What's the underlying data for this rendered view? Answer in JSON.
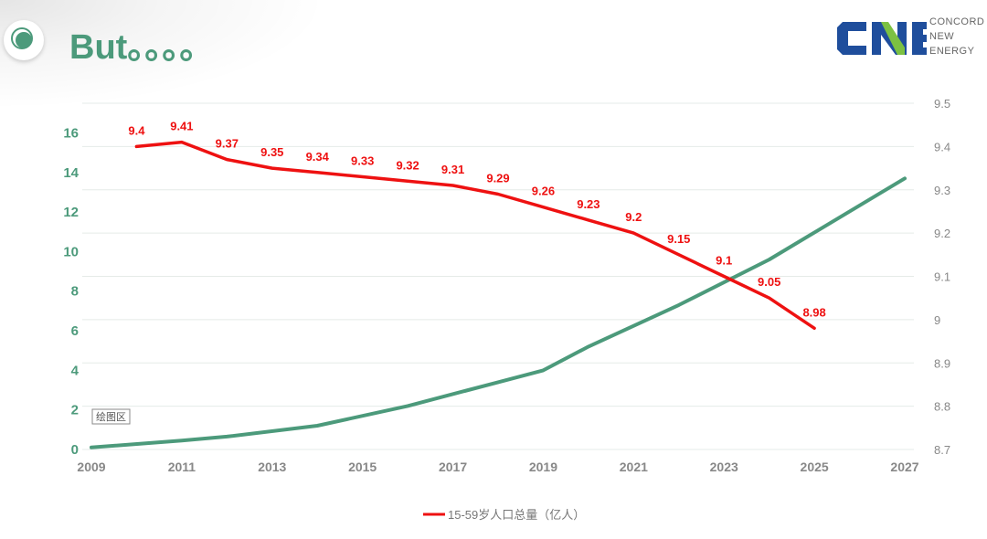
{
  "header": {
    "title": "But。。。。",
    "logo": {
      "mark": "CNE",
      "lines": [
        "CONCORD",
        "NEW",
        "ENERGY"
      ]
    }
  },
  "chart_data": {
    "type": "line",
    "plot_area_label": "绘图区",
    "x_ticks": [
      "2009",
      "2011",
      "2013",
      "2015",
      "2017",
      "2019",
      "2021",
      "2023",
      "2025",
      "2027"
    ],
    "y_left": {
      "min": 0,
      "max": 17.5,
      "ticks": [
        0,
        2,
        4,
        6,
        8,
        10,
        12,
        14,
        16
      ]
    },
    "y_right": {
      "min": 8.7,
      "max": 9.5,
      "ticks": [
        "8.7",
        "8.8",
        "8.9",
        "9",
        "9.1",
        "9.2",
        "9.3",
        "9.4",
        "9.5"
      ]
    },
    "grid": true,
    "legend_position": "bottom",
    "series": [
      {
        "name": "15-59岁人口总量（亿人）",
        "axis": "right",
        "color": "#ee1111",
        "x": [
          2010,
          2011,
          2012,
          2013,
          2014,
          2015,
          2016,
          2017,
          2018,
          2019,
          2020,
          2021,
          2022,
          2023,
          2024,
          2025
        ],
        "values": [
          9.4,
          9.41,
          9.37,
          9.35,
          9.34,
          9.33,
          9.32,
          9.31,
          9.29,
          9.26,
          9.23,
          9.2,
          9.15,
          9.1,
          9.05,
          8.98
        ],
        "labels": [
          "9.4",
          "9.41",
          "9.37",
          "9.35",
          "9.34",
          "9.33",
          "9.32",
          "9.31",
          "9.29",
          "9.26",
          "9.23",
          "9.2",
          "9.15",
          "9.1",
          "9.05",
          "8.98"
        ]
      },
      {
        "axis": "left",
        "color": "#4c9a7b",
        "x": [
          2009,
          2011,
          2012,
          2014,
          2016,
          2018,
          2019,
          2020,
          2022,
          2024,
          2027
        ],
        "values": [
          0.1,
          0.45,
          0.65,
          1.2,
          2.2,
          3.4,
          4.0,
          5.2,
          7.3,
          9.6,
          13.7
        ]
      }
    ]
  }
}
